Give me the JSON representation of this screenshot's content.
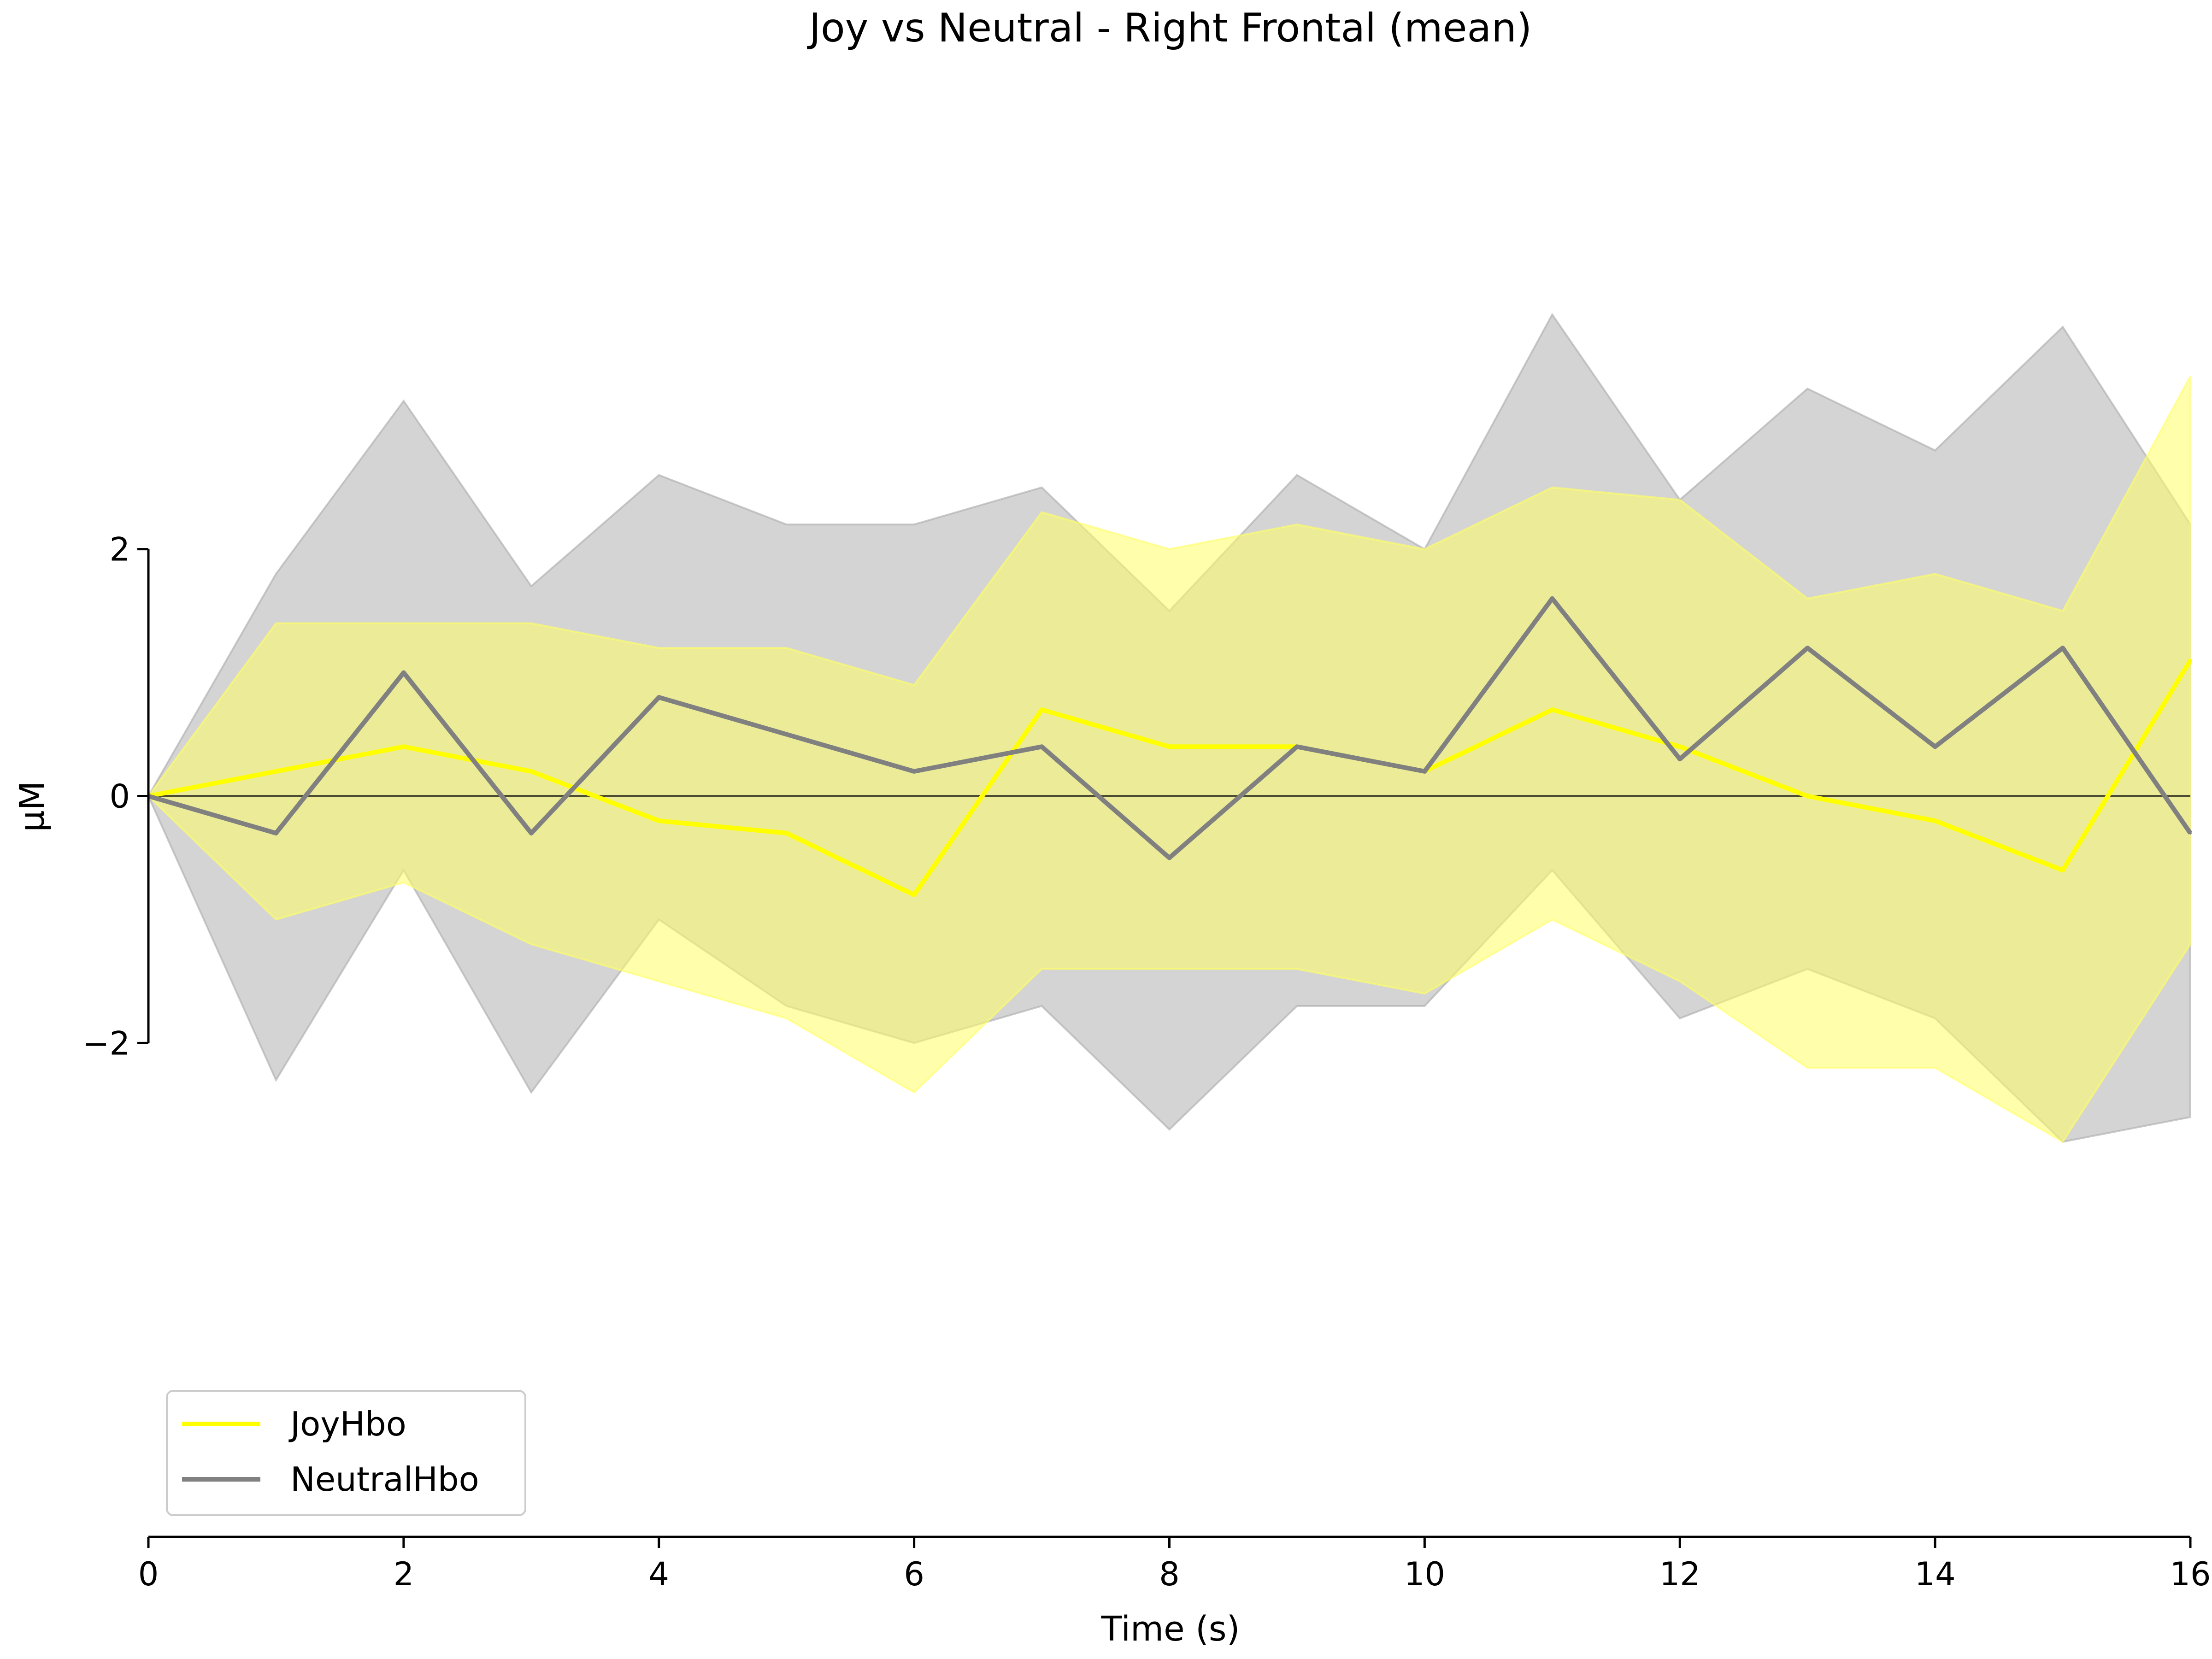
{
  "chart_data": {
    "type": "line",
    "title": "Joy vs Neutral - Right Frontal (mean)",
    "xlabel": "Time (s)",
    "ylabel": "µM",
    "xlim": [
      0,
      16
    ],
    "ylim": [
      -6,
      6
    ],
    "x_ticks": [
      "0",
      "2",
      "4",
      "6",
      "8",
      "10",
      "12",
      "14",
      "16"
    ],
    "y_ticks": [
      "2",
      "0",
      "−2"
    ],
    "y_tick_values": [
      2,
      0,
      -2
    ],
    "legend_position": "lower-left",
    "grid": false,
    "series": [
      {
        "name": "JoyHbo",
        "color": "#ffff00",
        "band_color": "#ffff66",
        "x": [
          0,
          1,
          2,
          3,
          4,
          5,
          6,
          7,
          8,
          9,
          10,
          11,
          12,
          13,
          14,
          15,
          16
        ],
        "values": [
          0.0,
          0.2,
          0.4,
          0.2,
          -0.2,
          -0.3,
          -0.8,
          0.7,
          0.4,
          0.4,
          0.2,
          0.7,
          0.4,
          0.0,
          -0.2,
          -0.6,
          1.1
        ],
        "upper": [
          0.0,
          1.4,
          1.4,
          1.4,
          1.2,
          1.2,
          0.9,
          2.3,
          2.0,
          2.2,
          2.0,
          2.5,
          2.4,
          1.6,
          1.8,
          1.5,
          3.4
        ],
        "lower": [
          0.0,
          -1.0,
          -0.7,
          -1.2,
          -1.5,
          -1.8,
          -2.4,
          -1.4,
          -1.4,
          -1.4,
          -1.6,
          -1.0,
          -1.5,
          -2.2,
          -2.2,
          -2.8,
          -1.2
        ]
      },
      {
        "name": "NeutralHbo",
        "color": "#808080",
        "band_color": "#aaaaaa",
        "x": [
          0,
          1,
          2,
          3,
          4,
          5,
          6,
          7,
          8,
          9,
          10,
          11,
          12,
          13,
          14,
          15,
          16
        ],
        "values": [
          0.0,
          -0.3,
          1.0,
          -0.3,
          0.8,
          0.5,
          0.2,
          0.4,
          -0.5,
          0.4,
          0.2,
          1.6,
          0.3,
          1.2,
          0.4,
          1.2,
          -0.3
        ],
        "upper": [
          0.0,
          1.8,
          3.2,
          1.7,
          2.6,
          2.2,
          2.2,
          2.5,
          1.5,
          2.6,
          2.0,
          3.9,
          2.4,
          3.3,
          2.8,
          3.8,
          2.2
        ],
        "lower": [
          0.0,
          -2.3,
          -0.6,
          -2.4,
          -1.0,
          -1.7,
          -2.0,
          -1.7,
          -2.7,
          -1.7,
          -1.7,
          -0.6,
          -1.8,
          -1.4,
          -1.8,
          -2.8,
          -2.6
        ]
      }
    ]
  }
}
